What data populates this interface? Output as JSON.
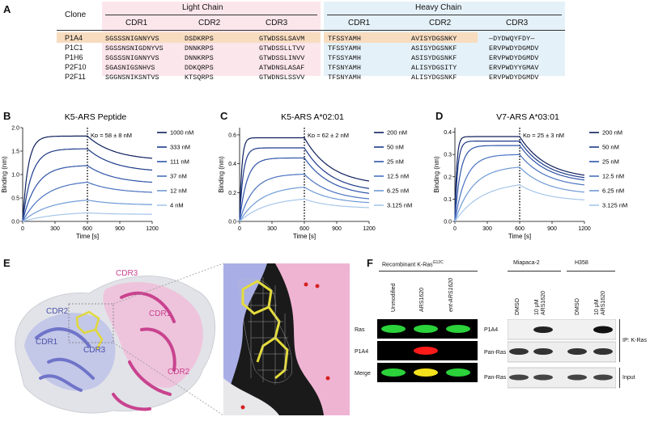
{
  "panels": {
    "A": "A",
    "B": "B",
    "C": "C",
    "D": "D",
    "E": "E",
    "F": "F"
  },
  "table": {
    "clone_header": "Clone",
    "light_chain": "Light Chain",
    "heavy_chain": "Heavy Chain",
    "cdr_headers": [
      "CDR1",
      "CDR2",
      "CDR3",
      "CDR1",
      "CDR2",
      "CDR3"
    ],
    "rows": [
      {
        "clone": "P1A4",
        "cells": [
          "SGSSSNIGNNYVS",
          "DSDKRPS",
          "GTWDSSLSAVM",
          "TFSSYAMH",
          "AVISYDGSNKY",
          "—DYDWQYFDY—"
        ]
      },
      {
        "clone": "P1C1",
        "cells": [
          "SGSSNSNIGDNYVS",
          "DNNKRPS",
          "GTWDSSLLTVV",
          "TFSSYAMH",
          "ASISYDGSNKF",
          "ERVPWDYDGMDV"
        ]
      },
      {
        "clone": "P1H6",
        "cells": [
          "SGSSSNIGNNYVS",
          "DNNKRPS",
          "GTWDSSLINVV",
          "TFSSYAMH",
          "ASISYDGSNKF",
          "ERVPWDYDGMDV"
        ]
      },
      {
        "clone": "P2F10",
        "cells": [
          "SGASNIGSNHVS",
          "DDKQRPS",
          "ATWDNSLASAF",
          "TFSNYAMH",
          "ALISYDGSITY",
          "ERVPWDYYGMAV"
        ]
      },
      {
        "clone": "P2F11",
        "cells": [
          "SGGNSNIKSNTVS",
          "KTSQRPS",
          "GTWDNSLSSVV",
          "TFSNYAMH",
          "ALISYDGSNKF",
          "ERVPWDYDGMDV"
        ]
      }
    ],
    "colors": {
      "light_bg": "#fbe6ec",
      "heavy_bg": "#e5f1f8",
      "highlight": "#f8dcc0"
    }
  },
  "chart_data": [
    {
      "type": "line",
      "title": "K5-ARS Peptide",
      "xlabel": "Time [s]",
      "ylabel": "Binding (nm)",
      "xlim": [
        0,
        1200
      ],
      "ylim": [
        0,
        2.0
      ],
      "xticks": [
        0,
        300,
        600,
        900,
        1200
      ],
      "yticks": [
        0,
        0.5,
        1.0,
        1.5,
        2.0
      ],
      "ytick_labels": [
        "0.0",
        "0.5",
        "1.0",
        "1.5",
        "2.0"
      ],
      "annotation": "Kᴅ = 58 ± 8 nM",
      "dissociation_start": 600,
      "series": [
        {
          "name": "1000 nM",
          "plateau": 1.82,
          "off": 1.3,
          "k": 0.02,
          "color": "#0d1f5c"
        },
        {
          "name": "333 nM",
          "plateau": 1.55,
          "off": 1.05,
          "k": 0.012,
          "color": "#1d3a8a"
        },
        {
          "name": "111 nM",
          "plateau": 1.2,
          "off": 0.8,
          "k": 0.008,
          "color": "#2f54a8"
        },
        {
          "name": "37 nM",
          "plateau": 0.88,
          "off": 0.6,
          "k": 0.005,
          "color": "#4a72c0"
        },
        {
          "name": "12 nM",
          "plateau": 0.5,
          "off": 0.35,
          "k": 0.004,
          "color": "#6f9ad6"
        },
        {
          "name": "4 nM",
          "plateau": 0.22,
          "off": 0.15,
          "k": 0.003,
          "color": "#a5c6ea"
        }
      ]
    },
    {
      "type": "line",
      "title": "K5-ARS A*02:01",
      "xlabel": "Time [s]",
      "ylabel": "Binding (nm)",
      "xlim": [
        0,
        1200
      ],
      "ylim": [
        0,
        0.65
      ],
      "xticks": [
        0,
        300,
        600,
        900,
        1200
      ],
      "yticks": [
        0,
        0.2,
        0.4,
        0.6
      ],
      "ytick_labels": [
        "0.0",
        "0.2",
        "0.4",
        "0.6"
      ],
      "annotation": "Kᴅ = 62 ± 2 nM",
      "dissociation_start": 600,
      "series": [
        {
          "name": "200 nM",
          "plateau": 0.58,
          "off": 0.25,
          "k": 0.05,
          "color": "#0d1f5c"
        },
        {
          "name": "50 nM",
          "plateau": 0.51,
          "off": 0.2,
          "k": 0.03,
          "color": "#1d3a8a"
        },
        {
          "name": "25 nM",
          "plateau": 0.44,
          "off": 0.17,
          "k": 0.015,
          "color": "#2f54a8"
        },
        {
          "name": "12.5 nM",
          "plateau": 0.33,
          "off": 0.14,
          "k": 0.008,
          "color": "#4a72c0"
        },
        {
          "name": "6.25 nM",
          "plateau": 0.25,
          "off": 0.12,
          "k": 0.005,
          "color": "#6f9ad6"
        },
        {
          "name": "3.125 nM",
          "plateau": 0.17,
          "off": 0.09,
          "k": 0.004,
          "color": "#a5c6ea"
        }
      ]
    },
    {
      "type": "line",
      "title": "V7-ARS A*03:01",
      "xlabel": "Time [s]",
      "ylabel": "Binding (nm)",
      "xlim": [
        0,
        1200
      ],
      "ylim": [
        0,
        0.42
      ],
      "xticks": [
        0,
        300,
        600,
        900,
        1200
      ],
      "yticks": [
        0,
        0.1,
        0.2,
        0.3,
        0.4
      ],
      "ytick_labels": [
        "0.0",
        "0.1",
        "0.2",
        "0.3",
        "0.4"
      ],
      "annotation": "Kᴅ = 25 ± 3 nM",
      "dissociation_start": 600,
      "series": [
        {
          "name": "200 nM",
          "plateau": 0.38,
          "off": 0.19,
          "k": 0.06,
          "color": "#0d1f5c"
        },
        {
          "name": "50 nM",
          "plateau": 0.36,
          "off": 0.18,
          "k": 0.04,
          "color": "#1d3a8a"
        },
        {
          "name": "25 nM",
          "plateau": 0.34,
          "off": 0.17,
          "k": 0.02,
          "color": "#2f54a8"
        },
        {
          "name": "12.5 nM",
          "plateau": 0.3,
          "off": 0.15,
          "k": 0.01,
          "color": "#4a72c0"
        },
        {
          "name": "6.25 nM",
          "plateau": 0.25,
          "off": 0.12,
          "k": 0.006,
          "color": "#6f9ad6"
        },
        {
          "name": "3.125 nM",
          "plateau": 0.18,
          "off": 0.09,
          "k": 0.004,
          "color": "#a5c6ea"
        }
      ]
    }
  ],
  "structure": {
    "labels": {
      "cdr3_top": "CDR3",
      "cdr2_left": "CDR2",
      "cdr1_right": "CDR1",
      "cdr1_left": "CDR1",
      "cdr3_mid": "CDR3",
      "cdr2_right": "CDR2"
    },
    "colors": {
      "light": "#8a8fd8",
      "heavy": "#d45fa6",
      "surface": "#d9dbe2"
    }
  },
  "western": {
    "left_title": "Recombinant K-Ras",
    "left_title_sup": "G12C",
    "lanes_left": [
      "Unmodified",
      "ARS1620",
      "ent-ARS1620"
    ],
    "rows_left": [
      "Ras",
      "P1A4",
      "Merge"
    ],
    "cell_groups": [
      "Miapaca-2",
      "H358"
    ],
    "lanes_right": [
      "DMSO",
      "10 μM ARS1620",
      "DMSO",
      "10 μM ARS1620"
    ],
    "rows_right": [
      "P1A4",
      "Pan-Ras",
      "Pan-Ras"
    ],
    "ip_label": "IP: K-Ras",
    "input_label": "Input"
  }
}
